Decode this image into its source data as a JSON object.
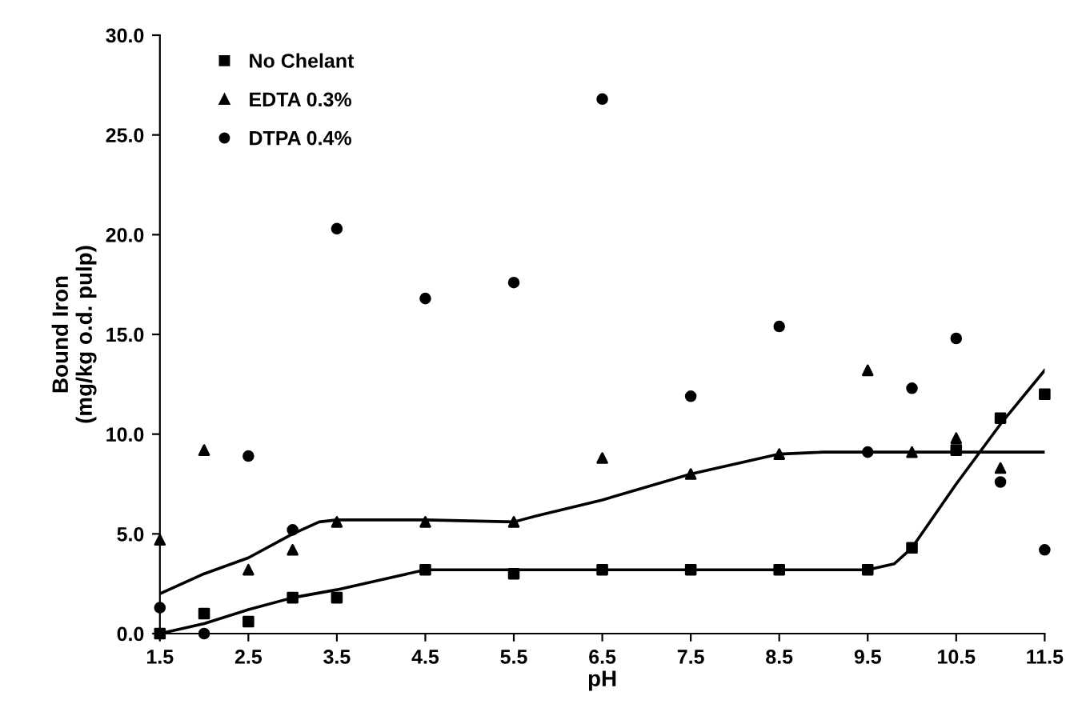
{
  "chart_data": {
    "type": "scatter",
    "xlabel": "pH",
    "ylabel": "Bound Iron\n(mg/kg o.d. pulp)",
    "xlim": [
      1.5,
      11.5
    ],
    "ylim": [
      0,
      30
    ],
    "xticks": [
      1.5,
      2.5,
      3.5,
      4.5,
      5.5,
      6.5,
      7.5,
      8.5,
      9.5,
      10.5,
      11.5
    ],
    "yticks": [
      {
        "value": 0,
        "label": "0.0"
      },
      {
        "value": 5,
        "label": "5.0"
      },
      {
        "value": 10,
        "label": "10.0"
      },
      {
        "value": 15,
        "label": "15.0"
      },
      {
        "value": 20,
        "label": "20.0"
      },
      {
        "value": 25,
        "label": "25.0"
      },
      {
        "value": 30,
        "label": "30.0"
      }
    ],
    "grid": false,
    "legend": "top left",
    "series": [
      {
        "name": "No Chelant",
        "color": "#000000",
        "marker": "square",
        "x": [
          1.5,
          2,
          2.5,
          3,
          3.5,
          4.5,
          5.5,
          6.5,
          7.5,
          8.5,
          9.5,
          10,
          10.5,
          11,
          11.5
        ],
        "values": [
          0,
          1.0,
          0.6,
          1.8,
          1.8,
          3.2,
          3.0,
          3.2,
          3.2,
          3.2,
          3.2,
          4.3,
          9.2,
          10.8,
          12.0
        ]
      },
      {
        "name": "EDTA 0.3%",
        "color": "#000000",
        "marker": "triangle",
        "x": [
          1.5,
          2,
          2.5,
          3,
          3.5,
          4.5,
          5.5,
          6.5,
          7.5,
          8.5,
          9.5,
          10,
          10.5,
          11
        ],
        "values": [
          4.7,
          9.2,
          3.2,
          4.2,
          5.6,
          5.6,
          5.6,
          8.8,
          8.0,
          9.0,
          13.2,
          9.1,
          9.8,
          8.3
        ]
      },
      {
        "name": "DTPA 0.4%",
        "color": "#000000",
        "marker": "circle",
        "x": [
          1.5,
          2,
          2.5,
          3,
          3.5,
          4.5,
          5.5,
          6.5,
          7.5,
          8.5,
          9.5,
          10,
          10.5,
          11,
          11.5
        ],
        "values": [
          1.3,
          0.0,
          8.9,
          5.2,
          20.3,
          16.8,
          17.6,
          26.8,
          11.9,
          15.4,
          9.1,
          12.3,
          14.8,
          7.6,
          4.2
        ]
      },
      {
        "type": "line",
        "color": "#000000",
        "marker": "none",
        "x": [
          1.5,
          2,
          2.5,
          3,
          3.5,
          4,
          4.5,
          5,
          5.5,
          6.5,
          7.5,
          8.5,
          9.5,
          9.8,
          10,
          10.5,
          11,
          11.5
        ],
        "values": [
          0,
          0.5,
          1.2,
          1.8,
          2.2,
          2.7,
          3.2,
          3.2,
          3.2,
          3.2,
          3.2,
          3.2,
          3.2,
          3.5,
          4.3,
          7.5,
          10.5,
          13.2
        ]
      },
      {
        "type": "line",
        "color": "#000000",
        "marker": "none",
        "x": [
          1.5,
          2,
          2.5,
          3,
          3.3,
          3.5,
          4.5,
          5.5,
          5.75,
          6.5,
          7.5,
          8.5,
          9,
          10,
          11.5
        ],
        "values": [
          2.0,
          3.0,
          3.8,
          5.0,
          5.6,
          5.7,
          5.7,
          5.6,
          5.9,
          6.7,
          8.0,
          9.0,
          9.1,
          9.1,
          9.1
        ]
      }
    ]
  }
}
